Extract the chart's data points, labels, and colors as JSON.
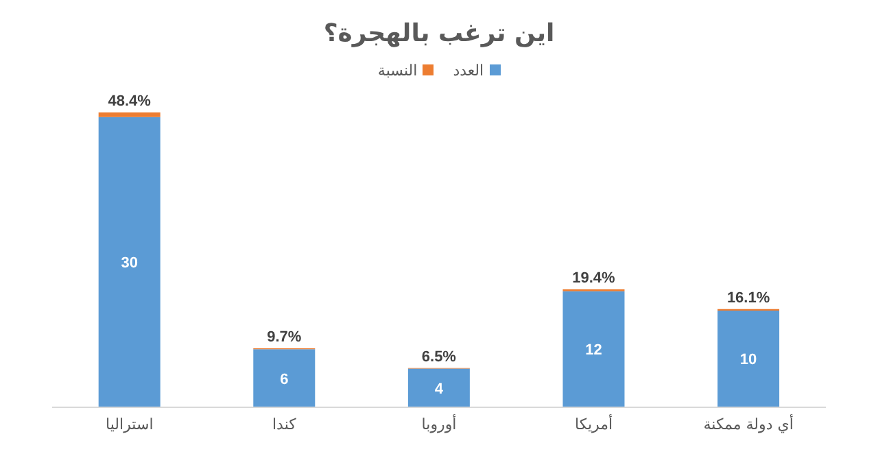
{
  "chart_data": {
    "type": "bar",
    "title": "اين ترغب بالهجرة؟",
    "categories": [
      "استراليا",
      "كندا",
      "أوروبا",
      "أمريكا",
      "أي دولة ممكنة"
    ],
    "stacked": true,
    "legend": "top",
    "series": [
      {
        "name": "العدد",
        "color": "#5b9bd5",
        "values": [
          30,
          6,
          4,
          12,
          10
        ],
        "value_labels": [
          "30",
          "6",
          "4",
          "12",
          "10"
        ]
      },
      {
        "name": "النسبة",
        "color": "#ed7d31",
        "values": [
          0.484,
          0.097,
          0.065,
          0.194,
          0.161
        ],
        "value_labels": [
          "48.4%",
          "9.7%",
          "6.5%",
          "19.4%",
          "16.1%"
        ]
      }
    ]
  }
}
